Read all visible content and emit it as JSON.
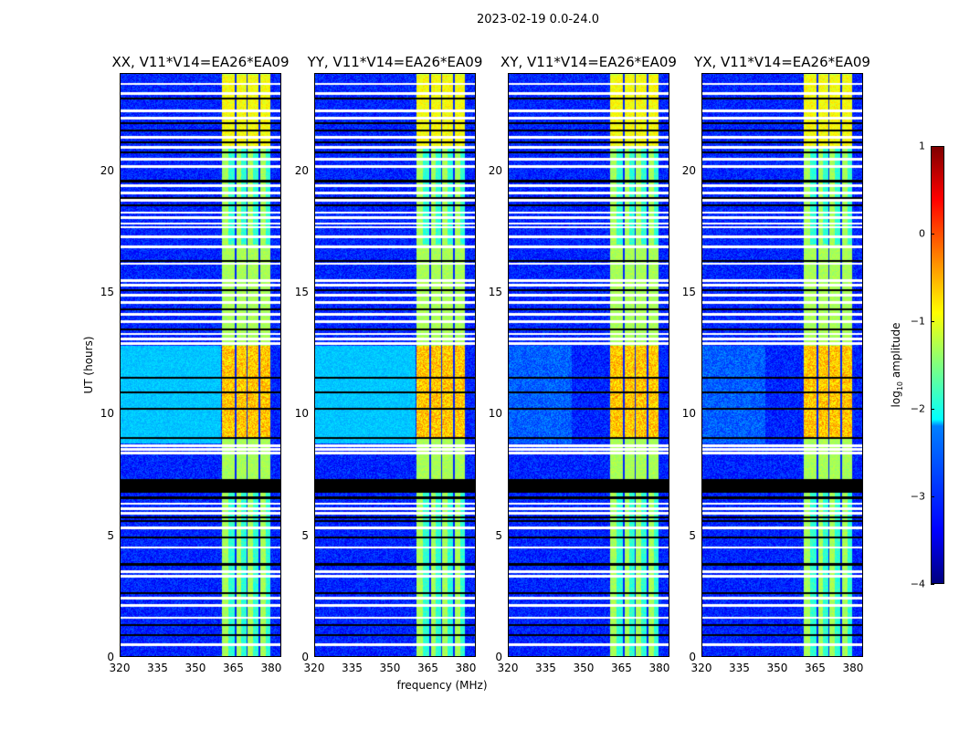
{
  "chart_data": {
    "type": "heatmap",
    "suptitle": "2023-02-19 0.0-24.0",
    "xlabel": "frequency (MHz)",
    "ylabel": "UT (hours)",
    "xlim": [
      320,
      384
    ],
    "ylim": [
      0,
      24
    ],
    "xticks": [
      "320",
      "335",
      "350",
      "365",
      "380"
    ],
    "xtick_values": [
      320,
      335,
      350,
      365,
      380
    ],
    "yticks": [
      "0",
      "5",
      "10",
      "15",
      "20"
    ],
    "ytick_values": [
      0,
      5,
      10,
      15,
      20
    ],
    "panels": [
      {
        "title": "XX, V11*V14=EA26*EA09",
        "pol": "XX",
        "low_band_excess": true
      },
      {
        "title": "YY, V11*V14=EA26*EA09",
        "pol": "YY",
        "low_band_excess": true
      },
      {
        "title": "XY, V11*V14=EA26*EA09",
        "pol": "XY",
        "low_band_excess": false
      },
      {
        "title": "YX, V11*V14=EA26*EA09",
        "pol": "YX",
        "low_band_excess": false
      }
    ],
    "rfi_band_mhz": [
      360.5,
      380
    ],
    "rfi_gap_lines_mhz": [
      366,
      370.5,
      375.5
    ],
    "colorbar": {
      "label": "log10 amplitude",
      "label_base": "log",
      "label_sub": "10",
      "label_rest": " amplitude",
      "range": [
        -4,
        1
      ],
      "ticks": [
        "1",
        "0",
        "−1",
        "−2",
        "−3",
        "−4"
      ],
      "tick_values": [
        1,
        0,
        -1,
        -2,
        -3,
        -4
      ],
      "colormap": "jet"
    }
  }
}
